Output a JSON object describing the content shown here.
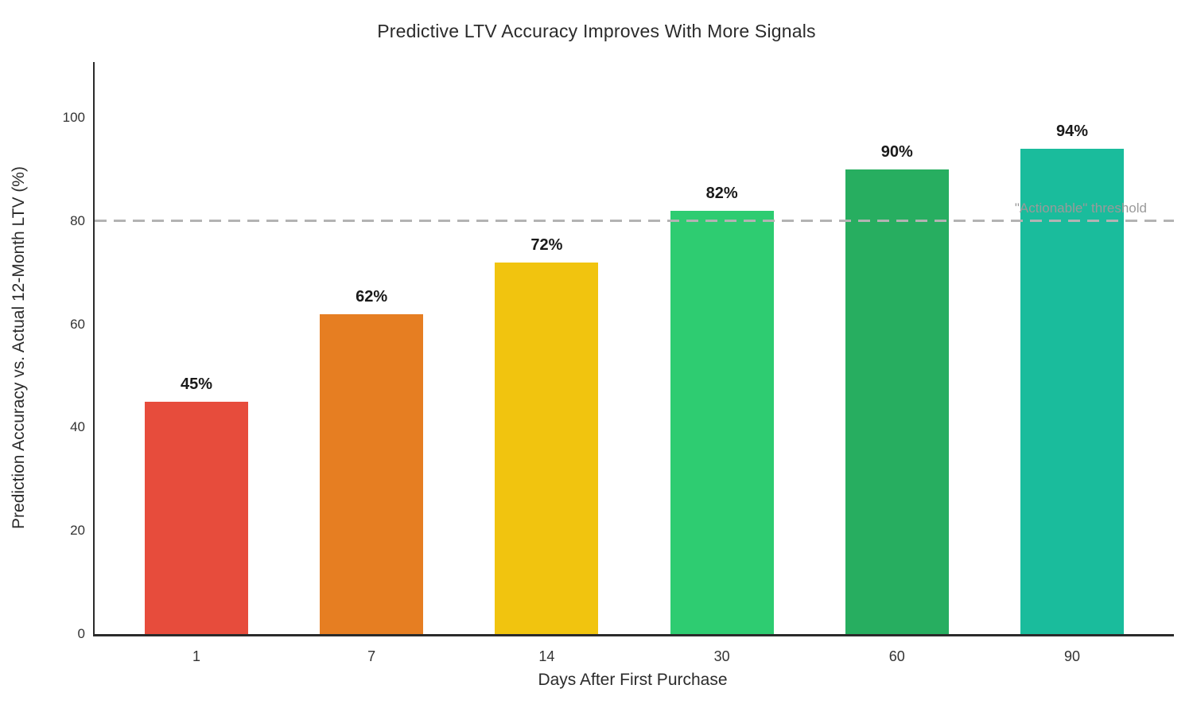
{
  "chart_data": {
    "type": "bar",
    "title": "Predictive LTV Accuracy Improves With More Signals",
    "xlabel": "Days After First Purchase",
    "ylabel": "Prediction Accuracy vs. Actual 12-Month LTV (%)",
    "categories": [
      "1",
      "7",
      "14",
      "30",
      "60",
      "90"
    ],
    "values": [
      45,
      62,
      72,
      82,
      90,
      94
    ],
    "value_labels": [
      "45%",
      "62%",
      "72%",
      "82%",
      "90%",
      "94%"
    ],
    "bar_colors": [
      "#e74c3c",
      "#e67e22",
      "#f1c40f",
      "#2ecc71",
      "#27ae60",
      "#1abc9c"
    ],
    "yticks": [
      0,
      20,
      40,
      60,
      80,
      100
    ],
    "ylim": [
      0,
      110.8
    ],
    "grid": false,
    "legend_position": "none",
    "threshold": {
      "value": 80,
      "label": "\"Actionable\" threshold",
      "line_color": "#b3b3b3",
      "label_color": "#9a9a9a",
      "style": "dashed"
    }
  },
  "colors": {
    "background": "#ffffff",
    "axis_spine": "#2b2b2b",
    "tick_text": "#333333",
    "title_text": "#2b2b2b",
    "value_label_text": "#1a1a1a"
  }
}
